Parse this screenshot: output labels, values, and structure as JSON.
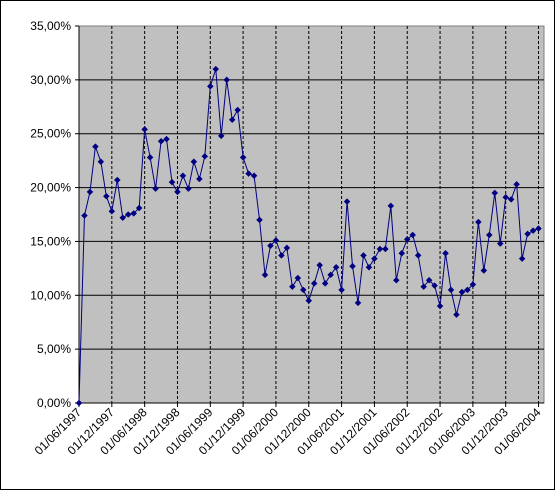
{
  "chart_data": {
    "type": "line",
    "title": "",
    "xlabel": "",
    "ylabel": "",
    "ylim": [
      0,
      35
    ],
    "y_tick_labels": [
      "0,00%",
      "5,00%",
      "10,00%",
      "15,00%",
      "20,00%",
      "25,00%",
      "30,00%",
      "35,00%"
    ],
    "x_tick_labels": [
      "01/06/1997",
      "01/12/1997",
      "01/06/1998",
      "01/12/1998",
      "01/06/1999",
      "01/12/1999",
      "01/06/2000",
      "01/12/2000",
      "01/06/2001",
      "01/12/2001",
      "01/06/2002",
      "01/12/2002",
      "01/06/2003",
      "01/12/2003",
      "01/06/2004"
    ],
    "plot_background": "#c0c0c0",
    "series_color": "#000080",
    "grid": true,
    "start_date": "1997-06",
    "series": [
      {
        "values": [
          0.0,
          17.4,
          19.6,
          23.8,
          22.4,
          19.2,
          17.8,
          20.7,
          17.2,
          17.5,
          17.6,
          18.1,
          25.4,
          22.8,
          19.9,
          24.3,
          24.5,
          20.5,
          19.6,
          21.1,
          19.9,
          22.4,
          20.8,
          22.9,
          29.4,
          31.0,
          24.8,
          30.0,
          26.3,
          27.2,
          22.8,
          21.3,
          21.1,
          17.0,
          11.9,
          14.6,
          15.1,
          13.7,
          14.4,
          10.8,
          11.6,
          10.5,
          9.5,
          11.1,
          12.8,
          11.1,
          11.9,
          12.6,
          10.5,
          18.7,
          12.7,
          9.3,
          13.7,
          12.6,
          13.4,
          14.3,
          14.3,
          18.3,
          11.4,
          13.9,
          15.2,
          15.6,
          13.7,
          10.8,
          11.4,
          10.9,
          9.0,
          13.9,
          10.5,
          8.2,
          10.3,
          10.5,
          11.0,
          16.8,
          12.3,
          15.6,
          19.5,
          14.8,
          19.1,
          18.9,
          20.3,
          13.4,
          15.7,
          16.0,
          16.2
        ]
      }
    ]
  }
}
